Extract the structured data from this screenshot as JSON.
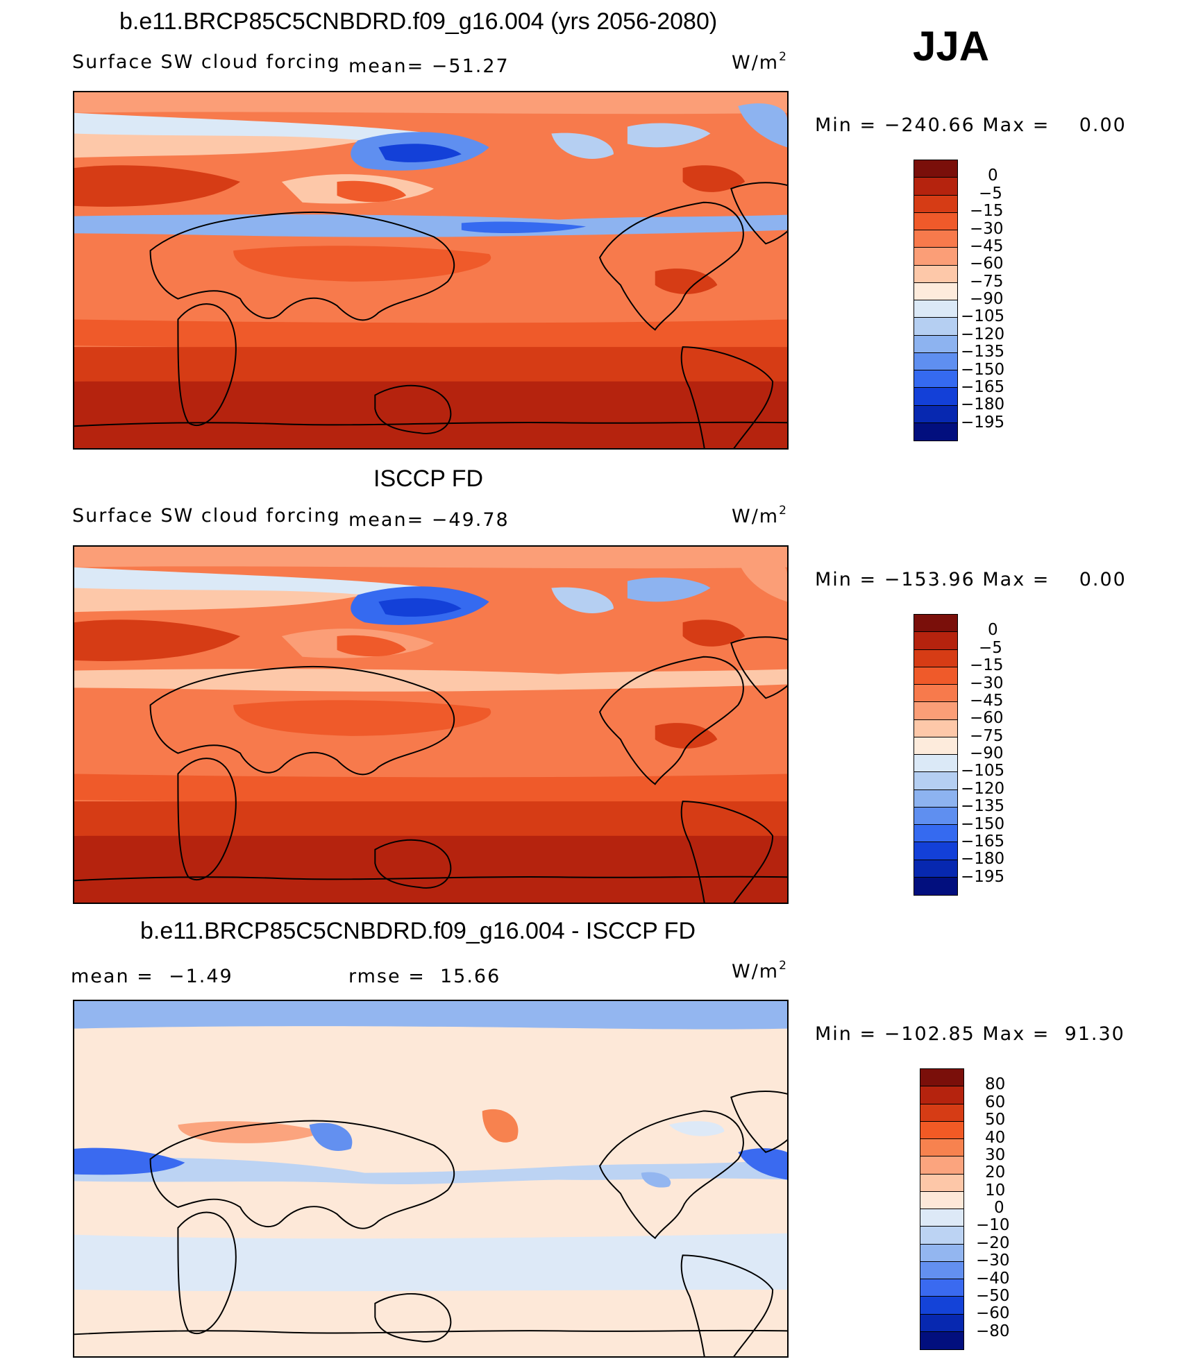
{
  "season": "JJA",
  "units": "W/m",
  "units_sup": "2",
  "panels": [
    {
      "title": "b.e11.BRCP85C5CNBDRD.f09_g16.004 (yrs 2056-2080)",
      "variable": "Surface SW cloud forcing",
      "mean_text": "mean= −51.27",
      "stats_text": "Min = −240.66 Max =    0.00",
      "colorbar": {
        "labels": [
          "0",
          "−5",
          "−15",
          "−30",
          "−45",
          "−60",
          "−75",
          "−90",
          "−105",
          "−120",
          "−135",
          "−150",
          "−165",
          "−180",
          "−195"
        ],
        "colors": [
          "#7a0f0a",
          "#b5230e",
          "#d63c15",
          "#ef5a2a",
          "#f77a4c",
          "#fb9e77",
          "#fdc8a9",
          "#fdebdc",
          "#dbe9f7",
          "#b5cff2",
          "#8db3f0",
          "#5f8ff0",
          "#356af0",
          "#1340d8",
          "#0728b0",
          "#020f7e"
        ]
      },
      "map_mode": "model"
    },
    {
      "title": "ISCCP FD",
      "variable": "Surface SW cloud forcing",
      "mean_text": "mean= −49.78",
      "stats_text": "Min = −153.96 Max =    0.00",
      "colorbar": {
        "labels": [
          "0",
          "−5",
          "−15",
          "−30",
          "−45",
          "−60",
          "−75",
          "−90",
          "−105",
          "−120",
          "−135",
          "−150",
          "−165",
          "−180",
          "−195"
        ],
        "colors": [
          "#7a0f0a",
          "#b5230e",
          "#d63c15",
          "#ef5a2a",
          "#f77a4c",
          "#fb9e77",
          "#fdc8a9",
          "#fdebdc",
          "#dbe9f7",
          "#b5cff2",
          "#8db3f0",
          "#5f8ff0",
          "#356af0",
          "#1340d8",
          "#0728b0",
          "#020f7e"
        ]
      },
      "map_mode": "obs"
    },
    {
      "title": "b.e11.BRCP85C5CNBDRD.f09_g16.004 - ISCCP FD",
      "mean_text": "mean =  −1.49",
      "rmse_text": "rmse =  15.66",
      "stats_text": "Min = −102.85 Max =  91.30",
      "colorbar": {
        "labels": [
          "80",
          "60",
          "50",
          "40",
          "30",
          "20",
          "10",
          "0",
          "−10",
          "−20",
          "−30",
          "−40",
          "−50",
          "−60",
          "−80"
        ],
        "colors": [
          "#7a0f0a",
          "#b5230e",
          "#d63c15",
          "#f25a25",
          "#f7824f",
          "#fba47e",
          "#fdc7a8",
          "#fde8d8",
          "#dde9f7",
          "#bcd3f3",
          "#93b6f0",
          "#6390f0",
          "#3a6af0",
          "#1443d8",
          "#0728b0",
          "#020f7e"
        ]
      },
      "map_mode": "diff"
    }
  ]
}
